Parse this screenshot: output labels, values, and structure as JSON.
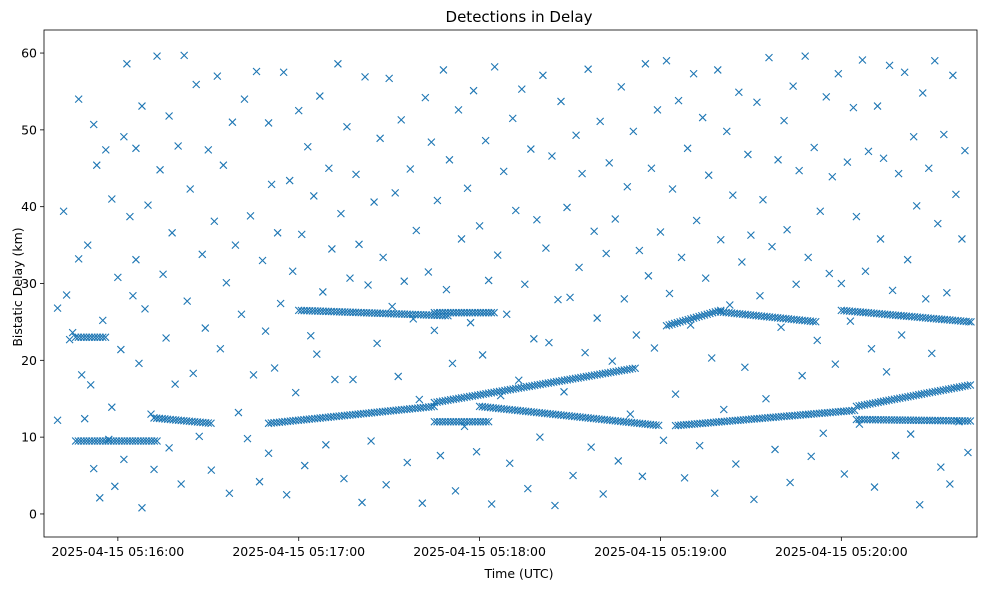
{
  "chart_data": {
    "type": "scatter",
    "title": "Detections in Delay",
    "xlabel": "Time (UTC)",
    "ylabel": "Bistatic Delay (km)",
    "marker": "x",
    "color": "#1f77b4",
    "grid": false,
    "x_unit": "seconds after 2025-04-15 05:15:00 UTC",
    "xlim": [
      35.5,
      345
    ],
    "ylim": [
      -3,
      63
    ],
    "x_ticks": [
      {
        "value": 60,
        "label": "2025-04-15 05:16:00"
      },
      {
        "value": 120,
        "label": "2025-04-15 05:17:00"
      },
      {
        "value": 180,
        "label": "2025-04-15 05:18:00"
      },
      {
        "value": 240,
        "label": "2025-04-15 05:19:00"
      },
      {
        "value": 300,
        "label": "2025-04-15 05:20:00"
      }
    ],
    "y_ticks": [
      0,
      10,
      20,
      30,
      40,
      50,
      60
    ],
    "tracks": [
      {
        "x_start": 46,
        "x_end": 73,
        "y_start": 9.5,
        "y_end": 9.5
      },
      {
        "x_start": 46,
        "x_end": 56,
        "y_start": 23,
        "y_end": 23
      },
      {
        "x_start": 72,
        "x_end": 91,
        "y_start": 12.5,
        "y_end": 11.8
      },
      {
        "x_start": 110,
        "x_end": 165,
        "y_start": 11.8,
        "y_end": 14
      },
      {
        "x_start": 165,
        "x_end": 232,
        "y_start": 14.5,
        "y_end": 19
      },
      {
        "x_start": 180,
        "x_end": 240,
        "y_start": 14,
        "y_end": 11.5
      },
      {
        "x_start": 245,
        "x_end": 305,
        "y_start": 11.5,
        "y_end": 13.5
      },
      {
        "x_start": 305,
        "x_end": 343,
        "y_start": 14,
        "y_end": 16.8
      },
      {
        "x_start": 120,
        "x_end": 170,
        "y_start": 26.5,
        "y_end": 25.8
      },
      {
        "x_start": 242,
        "x_end": 260,
        "y_start": 24.5,
        "y_end": 26.5
      },
      {
        "x_start": 260,
        "x_end": 292,
        "y_start": 26.3,
        "y_end": 25
      },
      {
        "x_start": 300,
        "x_end": 343,
        "y_start": 26.5,
        "y_end": 25
      },
      {
        "x_start": 165,
        "x_end": 183,
        "y_start": 12,
        "y_end": 12
      },
      {
        "x_start": 305,
        "x_end": 343,
        "y_start": 12.3,
        "y_end": 12.1
      },
      {
        "x_start": 165,
        "x_end": 185,
        "y_start": 26.2,
        "y_end": 26.2
      }
    ],
    "clutter": [
      [
        40,
        12.2
      ],
      [
        40,
        26.8
      ],
      [
        42,
        39.4
      ],
      [
        43,
        28.5
      ],
      [
        44,
        22.7
      ],
      [
        45,
        23.6
      ],
      [
        47,
        33.2
      ],
      [
        47,
        54.0
      ],
      [
        48,
        18.1
      ],
      [
        49,
        12.4
      ],
      [
        50,
        35.0
      ],
      [
        51,
        16.8
      ],
      [
        52,
        50.7
      ],
      [
        52,
        5.9
      ],
      [
        53,
        45.4
      ],
      [
        54,
        2.1
      ],
      [
        55,
        25.2
      ],
      [
        56,
        47.4
      ],
      [
        57,
        9.7
      ],
      [
        58,
        13.9
      ],
      [
        58,
        41.0
      ],
      [
        59,
        3.6
      ],
      [
        60,
        30.8
      ],
      [
        61,
        21.4
      ],
      [
        62,
        49.1
      ],
      [
        62,
        7.1
      ],
      [
        63,
        58.6
      ],
      [
        64,
        38.7
      ],
      [
        65,
        28.4
      ],
      [
        66,
        33.1
      ],
      [
        66,
        47.6
      ],
      [
        67,
        19.6
      ],
      [
        68,
        0.8
      ],
      [
        68,
        53.1
      ],
      [
        69,
        26.7
      ],
      [
        70,
        40.2
      ],
      [
        71,
        13.0
      ],
      [
        72,
        5.8
      ],
      [
        73,
        59.6
      ],
      [
        74,
        44.8
      ],
      [
        75,
        31.2
      ],
      [
        76,
        22.9
      ],
      [
        77,
        51.8
      ],
      [
        77,
        8.6
      ],
      [
        78,
        36.6
      ],
      [
        79,
        16.9
      ],
      [
        80,
        47.9
      ],
      [
        81,
        3.9
      ],
      [
        82,
        59.7
      ],
      [
        83,
        27.7
      ],
      [
        84,
        42.3
      ],
      [
        85,
        18.3
      ],
      [
        86,
        55.9
      ],
      [
        87,
        10.1
      ],
      [
        88,
        33.8
      ],
      [
        89,
        24.2
      ],
      [
        90,
        47.4
      ],
      [
        91,
        5.7
      ],
      [
        92,
        38.1
      ],
      [
        93,
        57.0
      ],
      [
        94,
        21.5
      ],
      [
        95,
        45.4
      ],
      [
        96,
        30.1
      ],
      [
        97,
        2.7
      ],
      [
        98,
        51.0
      ],
      [
        99,
        35.0
      ],
      [
        100,
        13.2
      ],
      [
        101,
        26.0
      ],
      [
        102,
        54.0
      ],
      [
        103,
        9.8
      ],
      [
        104,
        38.8
      ],
      [
        105,
        18.1
      ],
      [
        106,
        57.6
      ],
      [
        107,
        4.2
      ],
      [
        108,
        33.0
      ],
      [
        109,
        23.8
      ],
      [
        110,
        50.9
      ],
      [
        110,
        7.9
      ],
      [
        111,
        42.9
      ],
      [
        112,
        19.0
      ],
      [
        113,
        36.6
      ],
      [
        114,
        27.4
      ],
      [
        115,
        57.5
      ],
      [
        116,
        2.5
      ],
      [
        117,
        43.4
      ],
      [
        118,
        31.6
      ],
      [
        119,
        15.8
      ],
      [
        120,
        52.5
      ],
      [
        121,
        36.4
      ],
      [
        122,
        6.3
      ],
      [
        123,
        47.8
      ],
      [
        124,
        23.2
      ],
      [
        125,
        41.4
      ],
      [
        126,
        20.8
      ],
      [
        127,
        54.4
      ],
      [
        128,
        28.9
      ],
      [
        129,
        9.0
      ],
      [
        130,
        45.0
      ],
      [
        131,
        34.5
      ],
      [
        132,
        17.5
      ],
      [
        133,
        58.6
      ],
      [
        134,
        39.1
      ],
      [
        135,
        4.6
      ],
      [
        136,
        50.4
      ],
      [
        137,
        30.7
      ],
      [
        138,
        17.5
      ],
      [
        139,
        44.2
      ],
      [
        140,
        35.1
      ],
      [
        141,
        1.5
      ],
      [
        142,
        56.9
      ],
      [
        143,
        29.8
      ],
      [
        144,
        9.5
      ],
      [
        145,
        40.6
      ],
      [
        146,
        22.2
      ],
      [
        147,
        48.9
      ],
      [
        148,
        33.4
      ],
      [
        149,
        3.8
      ],
      [
        150,
        56.7
      ],
      [
        151,
        27.0
      ],
      [
        152,
        41.8
      ],
      [
        153,
        17.9
      ],
      [
        154,
        51.3
      ],
      [
        155,
        30.3
      ],
      [
        156,
        6.7
      ],
      [
        157,
        44.9
      ],
      [
        158,
        25.4
      ],
      [
        159,
        36.9
      ],
      [
        160,
        14.9
      ],
      [
        161,
        1.4
      ],
      [
        162,
        54.2
      ],
      [
        163,
        31.5
      ],
      [
        164,
        48.4
      ],
      [
        165,
        23.9
      ],
      [
        166,
        40.8
      ],
      [
        167,
        7.6
      ],
      [
        168,
        57.8
      ],
      [
        169,
        29.2
      ],
      [
        170,
        46.1
      ],
      [
        171,
        19.6
      ],
      [
        172,
        3.0
      ],
      [
        173,
        52.6
      ],
      [
        174,
        35.8
      ],
      [
        175,
        11.4
      ],
      [
        176,
        42.4
      ],
      [
        177,
        24.9
      ],
      [
        178,
        55.1
      ],
      [
        179,
        8.1
      ],
      [
        180,
        37.5
      ],
      [
        181,
        20.7
      ],
      [
        182,
        48.6
      ],
      [
        183,
        30.4
      ],
      [
        184,
        1.3
      ],
      [
        185,
        58.2
      ],
      [
        186,
        33.7
      ],
      [
        187,
        15.4
      ],
      [
        188,
        44.6
      ],
      [
        189,
        26.0
      ],
      [
        190,
        6.6
      ],
      [
        191,
        51.5
      ],
      [
        192,
        39.5
      ],
      [
        193,
        17.4
      ],
      [
        194,
        55.3
      ],
      [
        195,
        29.9
      ],
      [
        196,
        3.3
      ],
      [
        197,
        47.5
      ],
      [
        198,
        22.8
      ],
      [
        199,
        38.3
      ],
      [
        200,
        10.0
      ],
      [
        201,
        57.1
      ],
      [
        202,
        34.6
      ],
      [
        203,
        22.3
      ],
      [
        204,
        46.6
      ],
      [
        205,
        1.1
      ],
      [
        206,
        27.9
      ],
      [
        207,
        53.7
      ],
      [
        208,
        15.9
      ],
      [
        209,
        39.9
      ],
      [
        210,
        28.2
      ],
      [
        211,
        5.0
      ],
      [
        212,
        49.3
      ],
      [
        213,
        32.1
      ],
      [
        214,
        44.3
      ],
      [
        215,
        21.0
      ],
      [
        216,
        57.9
      ],
      [
        217,
        8.7
      ],
      [
        218,
        36.8
      ],
      [
        219,
        25.5
      ],
      [
        220,
        51.1
      ],
      [
        221,
        2.6
      ],
      [
        222,
        33.9
      ],
      [
        223,
        45.7
      ],
      [
        224,
        19.9
      ],
      [
        225,
        38.4
      ],
      [
        226,
        6.9
      ],
      [
        227,
        55.6
      ],
      [
        228,
        28.0
      ],
      [
        229,
        42.6
      ],
      [
        230,
        13.0
      ],
      [
        231,
        49.8
      ],
      [
        232,
        23.3
      ],
      [
        233,
        34.3
      ],
      [
        234,
        4.9
      ],
      [
        235,
        58.6
      ],
      [
        236,
        31.0
      ],
      [
        237,
        45.0
      ],
      [
        238,
        21.6
      ],
      [
        239,
        52.6
      ],
      [
        240,
        36.7
      ],
      [
        241,
        9.6
      ],
      [
        242,
        59.0
      ],
      [
        243,
        28.7
      ],
      [
        244,
        42.3
      ],
      [
        245,
        15.6
      ],
      [
        246,
        53.8
      ],
      [
        247,
        33.4
      ],
      [
        248,
        4.7
      ],
      [
        249,
        47.6
      ],
      [
        250,
        24.6
      ],
      [
        251,
        57.3
      ],
      [
        252,
        38.2
      ],
      [
        253,
        8.9
      ],
      [
        254,
        51.6
      ],
      [
        255,
        30.7
      ],
      [
        256,
        44.1
      ],
      [
        257,
        20.3
      ],
      [
        258,
        2.7
      ],
      [
        259,
        57.8
      ],
      [
        260,
        35.7
      ],
      [
        261,
        13.6
      ],
      [
        262,
        49.8
      ],
      [
        263,
        27.2
      ],
      [
        264,
        41.5
      ],
      [
        265,
        6.5
      ],
      [
        266,
        54.9
      ],
      [
        267,
        32.8
      ],
      [
        268,
        19.1
      ],
      [
        269,
        46.8
      ],
      [
        270,
        36.3
      ],
      [
        271,
        1.9
      ],
      [
        272,
        53.6
      ],
      [
        273,
        28.4
      ],
      [
        274,
        40.9
      ],
      [
        275,
        15.0
      ],
      [
        276,
        59.4
      ],
      [
        277,
        34.8
      ],
      [
        278,
        8.4
      ],
      [
        279,
        46.1
      ],
      [
        280,
        24.3
      ],
      [
        281,
        51.2
      ],
      [
        282,
        37.0
      ],
      [
        283,
        4.1
      ],
      [
        284,
        55.7
      ],
      [
        285,
        29.9
      ],
      [
        286,
        44.7
      ],
      [
        287,
        18.0
      ],
      [
        288,
        59.6
      ],
      [
        289,
        33.4
      ],
      [
        290,
        7.5
      ],
      [
        291,
        47.7
      ],
      [
        292,
        22.6
      ],
      [
        293,
        39.4
      ],
      [
        294,
        10.5
      ],
      [
        295,
        54.3
      ],
      [
        296,
        31.3
      ],
      [
        297,
        43.9
      ],
      [
        298,
        19.5
      ],
      [
        299,
        57.3
      ],
      [
        300,
        30.0
      ],
      [
        301,
        5.2
      ],
      [
        302,
        45.8
      ],
      [
        303,
        25.1
      ],
      [
        304,
        52.9
      ],
      [
        305,
        38.7
      ],
      [
        306,
        11.7
      ],
      [
        307,
        59.1
      ],
      [
        308,
        31.6
      ],
      [
        309,
        47.2
      ],
      [
        310,
        21.5
      ],
      [
        311,
        3.5
      ],
      [
        312,
        53.1
      ],
      [
        313,
        35.8
      ],
      [
        314,
        46.3
      ],
      [
        315,
        18.5
      ],
      [
        316,
        58.4
      ],
      [
        317,
        29.1
      ],
      [
        318,
        7.6
      ],
      [
        319,
        44.3
      ],
      [
        320,
        23.3
      ],
      [
        321,
        57.5
      ],
      [
        322,
        33.1
      ],
      [
        323,
        10.4
      ],
      [
        324,
        49.1
      ],
      [
        325,
        40.1
      ],
      [
        326,
        1.2
      ],
      [
        327,
        54.8
      ],
      [
        328,
        28.0
      ],
      [
        329,
        45.0
      ],
      [
        330,
        20.9
      ],
      [
        331,
        59.0
      ],
      [
        332,
        37.8
      ],
      [
        333,
        6.1
      ],
      [
        334,
        49.4
      ],
      [
        335,
        28.8
      ],
      [
        336,
        3.9
      ],
      [
        337,
        57.1
      ],
      [
        338,
        41.6
      ],
      [
        339,
        12.0
      ],
      [
        340,
        35.8
      ],
      [
        341,
        47.3
      ],
      [
        342,
        8.0
      ],
      [
        343,
        25.0
      ]
    ]
  }
}
